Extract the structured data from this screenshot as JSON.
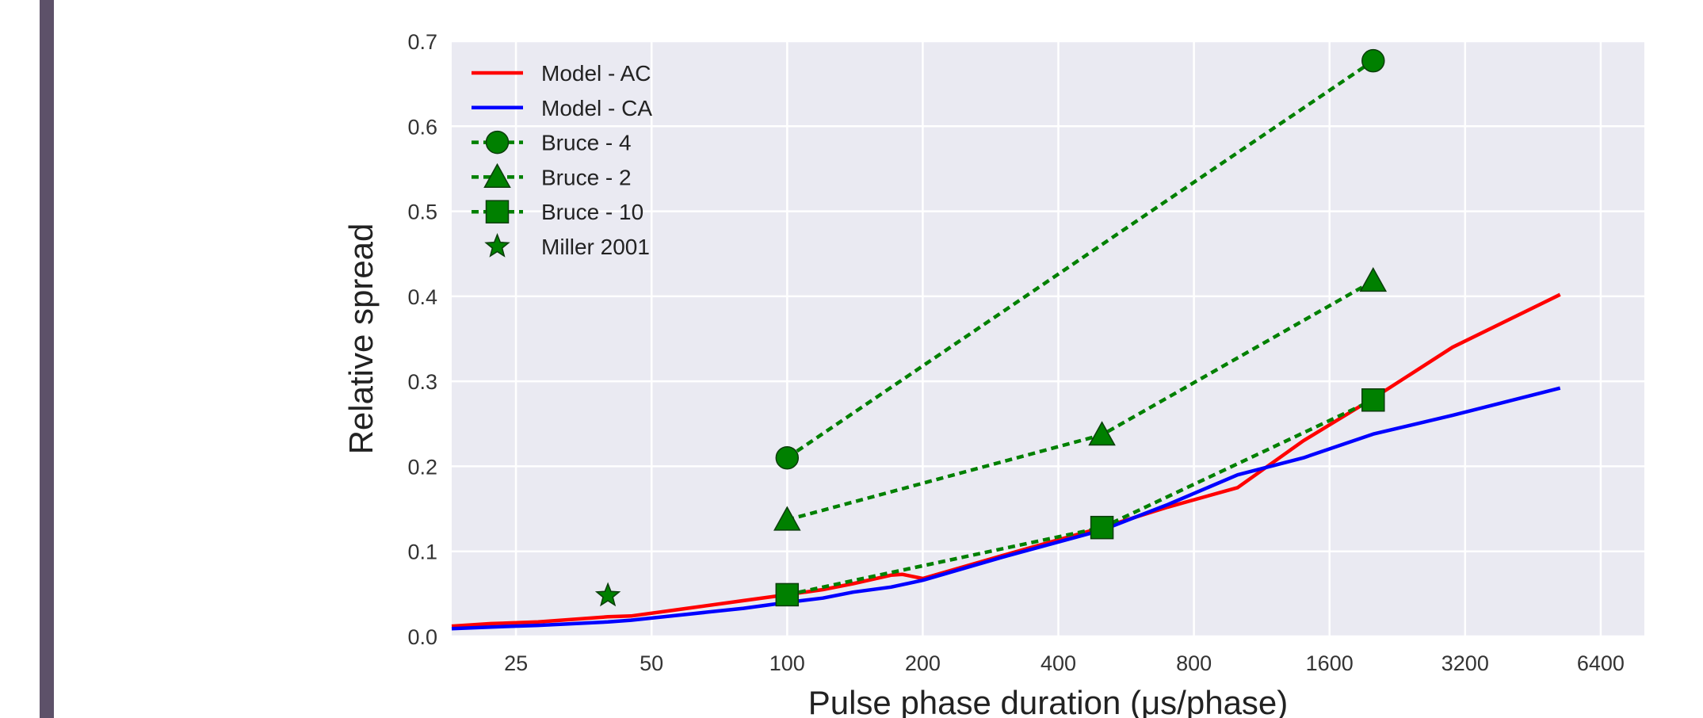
{
  "chart_data": {
    "type": "line",
    "xlabel": "Pulse phase duration (μs/phase)",
    "ylabel": "Relative spread",
    "xscale": "log2",
    "xlim": [
      18,
      8000
    ],
    "ylim": [
      0,
      0.7
    ],
    "xticks": [
      25,
      50,
      100,
      200,
      400,
      800,
      1600,
      3200,
      6400
    ],
    "yticks": [
      "0.0",
      "0.1",
      "0.2",
      "0.3",
      "0.4",
      "0.5",
      "0.6",
      "0.7"
    ],
    "grid": true,
    "legend_position": "top-left",
    "series": [
      {
        "name": "Model - AC",
        "color": "#ff0000",
        "style": "solid",
        "marker": "none",
        "x": [
          18,
          22,
          28,
          40,
          45,
          60,
          80,
          100,
          120,
          140,
          170,
          180,
          200,
          300,
          500,
          700,
          1000,
          1400,
          2000,
          3000,
          5200
        ],
        "y": [
          0.012,
          0.015,
          0.017,
          0.023,
          0.024,
          0.033,
          0.042,
          0.049,
          0.055,
          0.062,
          0.072,
          0.073,
          0.068,
          0.095,
          0.128,
          0.152,
          0.175,
          0.23,
          0.28,
          0.34,
          0.402
        ]
      },
      {
        "name": "Model - CA",
        "color": "#0000ff",
        "style": "solid",
        "marker": "none",
        "x": [
          18,
          22,
          28,
          40,
          45,
          60,
          80,
          100,
          120,
          140,
          170,
          200,
          300,
          500,
          700,
          1000,
          1400,
          2000,
          3000,
          5200
        ],
        "y": [
          0.009,
          0.011,
          0.013,
          0.017,
          0.019,
          0.026,
          0.033,
          0.04,
          0.045,
          0.052,
          0.058,
          0.066,
          0.093,
          0.125,
          0.155,
          0.19,
          0.21,
          0.238,
          0.26,
          0.292
        ]
      },
      {
        "name": "Bruce - 4",
        "color": "#008000",
        "style": "dashed",
        "marker": "circle",
        "x": [
          100,
          2000
        ],
        "y": [
          0.21,
          0.677
        ]
      },
      {
        "name": "Bruce - 2",
        "color": "#008000",
        "style": "dashed",
        "marker": "triangle",
        "x": [
          100,
          500,
          2000
        ],
        "y": [
          0.137,
          0.237,
          0.418
        ]
      },
      {
        "name": "Bruce - 10",
        "color": "#008000",
        "style": "dashed",
        "marker": "square",
        "x": [
          100,
          500,
          2000
        ],
        "y": [
          0.049,
          0.128,
          0.278
        ]
      },
      {
        "name": "Miller 2001",
        "color": "#008000",
        "style": "none",
        "marker": "star",
        "x": [
          40
        ],
        "y": [
          0.048
        ]
      }
    ]
  }
}
